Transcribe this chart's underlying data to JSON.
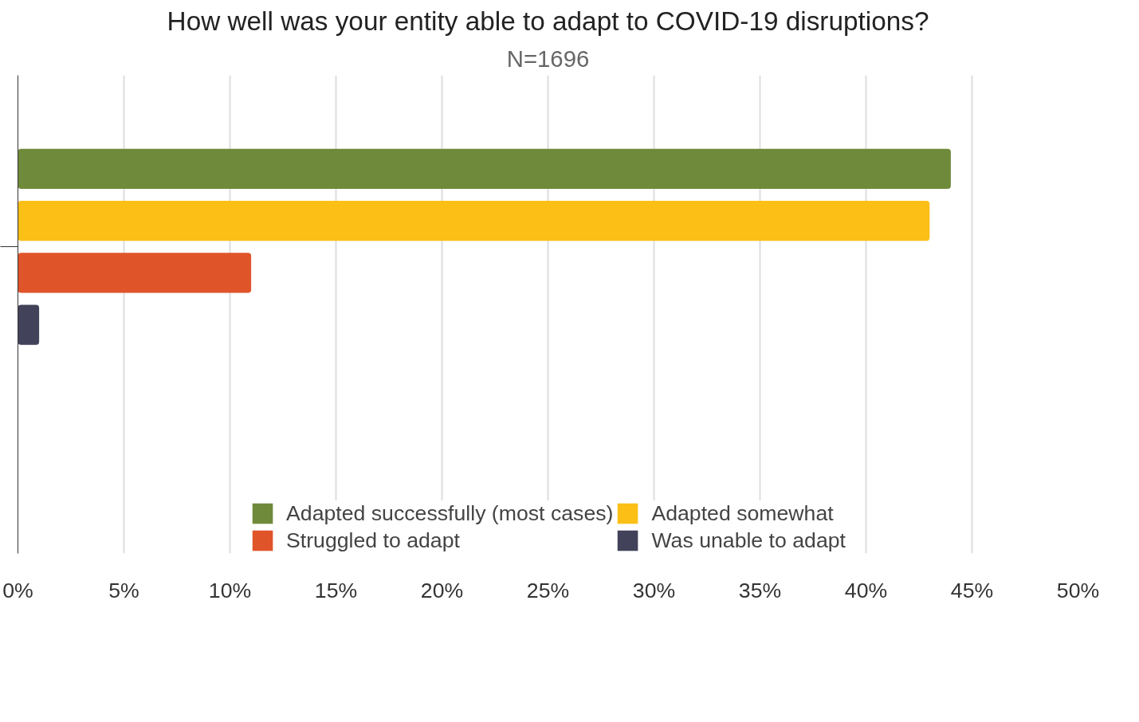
{
  "chart_data": {
    "type": "bar",
    "orientation": "horizontal",
    "title": "How well was your entity able to adapt to COVID-19 disruptions?",
    "subtitle": "N=1696",
    "categories": [
      null
    ],
    "series": [
      {
        "name": "Adapted successfully (most cases)",
        "color": "#6f8a3a",
        "values": [
          44
        ]
      },
      {
        "name": "Adapted somewhat",
        "color": "#fbbf16",
        "values": [
          43
        ]
      },
      {
        "name": "Struggled to adapt",
        "color": "#e0542a",
        "values": [
          11
        ]
      },
      {
        "name": "Was unable to adapt",
        "color": "#42435a",
        "values": [
          1
        ]
      }
    ],
    "xlim": [
      0,
      50
    ],
    "xticks": [
      {
        "value": 0,
        "label": "0%"
      },
      {
        "value": 5,
        "label": "5%"
      },
      {
        "value": 10,
        "label": "10%"
      },
      {
        "value": 15,
        "label": "15%"
      },
      {
        "value": 20,
        "label": "20%"
      },
      {
        "value": 25,
        "label": "25%"
      },
      {
        "value": 30,
        "label": "30%"
      },
      {
        "value": 35,
        "label": "35%"
      },
      {
        "value": 40,
        "label": "40%"
      },
      {
        "value": 45,
        "label": "45%"
      },
      {
        "value": 50,
        "label": "50%"
      }
    ],
    "grid": "x",
    "legend": "bottom"
  }
}
